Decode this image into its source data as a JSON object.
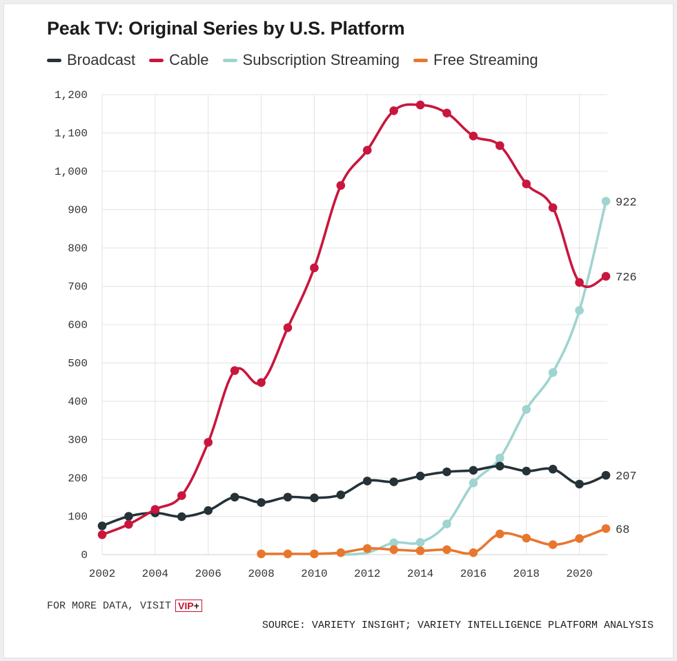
{
  "chart_data": {
    "type": "line",
    "title": "Peak TV: Original Series by U.S. Platform",
    "xlabel": "",
    "ylabel": "",
    "xlim": [
      2002,
      2021
    ],
    "ylim": [
      0,
      1200
    ],
    "x_ticks": [
      "2002",
      "2004",
      "2006",
      "2008",
      "2010",
      "2012",
      "2014",
      "2016",
      "2018",
      "2020"
    ],
    "y_ticks": [
      "0",
      "100",
      "200",
      "300",
      "400",
      "500",
      "600",
      "700",
      "800",
      "900",
      "1,000",
      "1,100",
      "1,200"
    ],
    "grid": true,
    "legend_position": "top-left",
    "series": [
      {
        "name": "Broadcast",
        "color": "#253238",
        "end_label": "207",
        "x": [
          2002,
          2003,
          2004,
          2005,
          2006,
          2007,
          2008,
          2009,
          2010,
          2011,
          2012,
          2013,
          2014,
          2015,
          2016,
          2017,
          2018,
          2019,
          2020,
          2021
        ],
        "values": [
          75,
          100,
          109,
          99,
          115,
          150,
          136,
          150,
          148,
          156,
          192,
          190,
          205,
          216,
          220,
          231,
          218,
          223,
          184,
          207
        ]
      },
      {
        "name": "Cable",
        "color": "#c8163d",
        "end_label": "726",
        "x": [
          2002,
          2003,
          2004,
          2005,
          2006,
          2007,
          2008,
          2009,
          2010,
          2011,
          2012,
          2013,
          2014,
          2015,
          2016,
          2017,
          2018,
          2019,
          2020,
          2021
        ],
        "values": [
          52,
          79,
          118,
          154,
          293,
          480,
          449,
          592,
          748,
          963,
          1055,
          1158,
          1173,
          1152,
          1092,
          1067,
          967,
          905,
          710,
          726
        ]
      },
      {
        "name": "Subscription Streaming",
        "color": "#9fd4d0",
        "end_label": "922",
        "x": [
          2011,
          2012,
          2013,
          2014,
          2015,
          2016,
          2017,
          2018,
          2019,
          2020,
          2021
        ],
        "values": [
          0,
          5,
          31,
          32,
          80,
          187,
          252,
          379,
          475,
          637,
          922
        ],
        "marker_start_index": 2
      },
      {
        "name": "Free Streaming",
        "color": "#e8772e",
        "end_label": "68",
        "x": [
          2008,
          2009,
          2010,
          2011,
          2012,
          2013,
          2014,
          2015,
          2016,
          2017,
          2018,
          2019,
          2020,
          2021
        ],
        "values": [
          2,
          2,
          2,
          5,
          16,
          13,
          10,
          13,
          5,
          54,
          43,
          26,
          42,
          68
        ]
      }
    ]
  },
  "footer": {
    "more_text": "FOR MORE DATA, VISIT",
    "vip_text": "VIP",
    "vip_plus": "+",
    "source": "SOURCE: VARIETY INSIGHT; VARIETY INTELLIGENCE PLATFORM ANALYSIS"
  }
}
